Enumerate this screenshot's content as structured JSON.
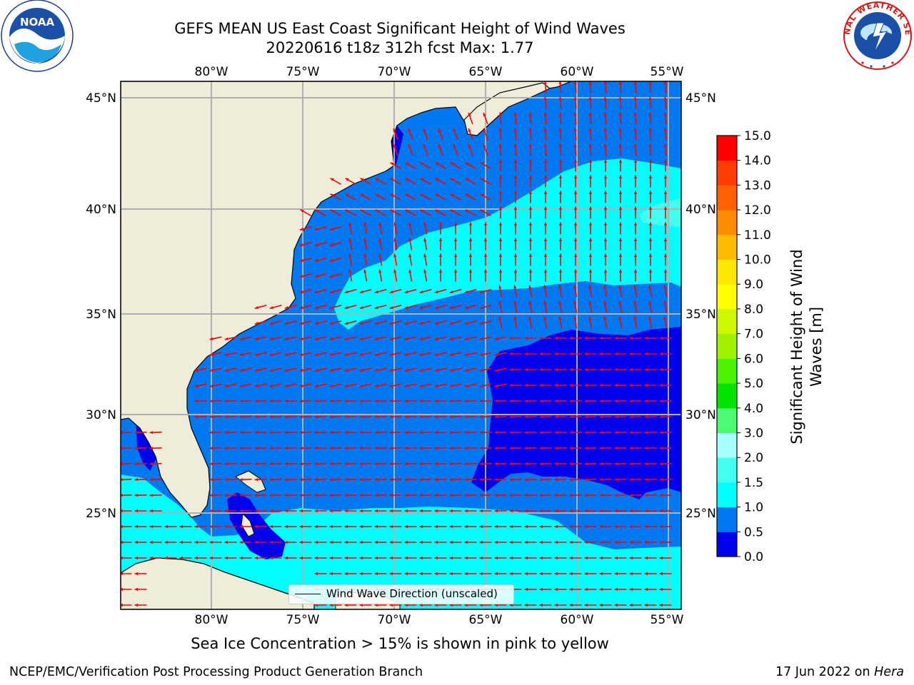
{
  "header": {
    "title_line1": "GEFS MEAN US East Coast Significant Height of Wind Waves",
    "title_line2": "20220616 t18z 312h fcst   Max: 1.77"
  },
  "logos": {
    "noaa_text": "NOAA",
    "noaa_ring": "NATIONAL OCEANIC AND ATMOSPHERIC ADMINISTRATION • U.S. DEPARTMENT OF COMMERCE",
    "nws_ring": "NATIONAL WEATHER SERVICE"
  },
  "map": {
    "lon_labels": [
      "80°W",
      "75°W",
      "70°W",
      "65°W",
      "60°W",
      "55°W"
    ],
    "lat_labels": [
      "45°N",
      "40°N",
      "35°N",
      "30°N",
      "25°N"
    ],
    "extent": {
      "lon_min": -84.5,
      "lon_max": -54.3,
      "lat_min": 20.5,
      "lat_max": 45.8
    },
    "legend_text": "Wind Wave Direction (unscaled)",
    "colors": {
      "land": "#efedda",
      "grid": "#b0b0b0",
      "arrow": "#ff0000"
    }
  },
  "colorbar": {
    "title_line1": "Significant Height of Wind",
    "title_line2": "Waves [m]",
    "tick_labels": [
      "0.0",
      "0.5",
      "1.0",
      "1.5",
      "2.0",
      "3.0",
      "4.0",
      "5.0",
      "6.0",
      "7.0",
      "8.0",
      "9.0",
      "10.0",
      "11.0",
      "12.0",
      "13.0",
      "14.0",
      "15.0"
    ],
    "bin_colors": [
      "#0000ee",
      "#0078f0",
      "#00ffff",
      "#43fff0",
      "#a8ffff",
      "#4cfa74",
      "#00e400",
      "#4df200",
      "#9ff200",
      "#ccf800",
      "#fffe00",
      "#ffe800",
      "#ffbb00",
      "#ff8c00",
      "#ff6000",
      "#ff3d00",
      "#ff0000"
    ]
  },
  "notes": {
    "sea_ice": "Sea Ice Concentration > 15% is shown in pink to yellow",
    "producer": "NCEP/EMC/Verification Post Processing Product Generation Branch",
    "date_prefix": "17 Jun 2022 on ",
    "machine": "Hera"
  }
}
